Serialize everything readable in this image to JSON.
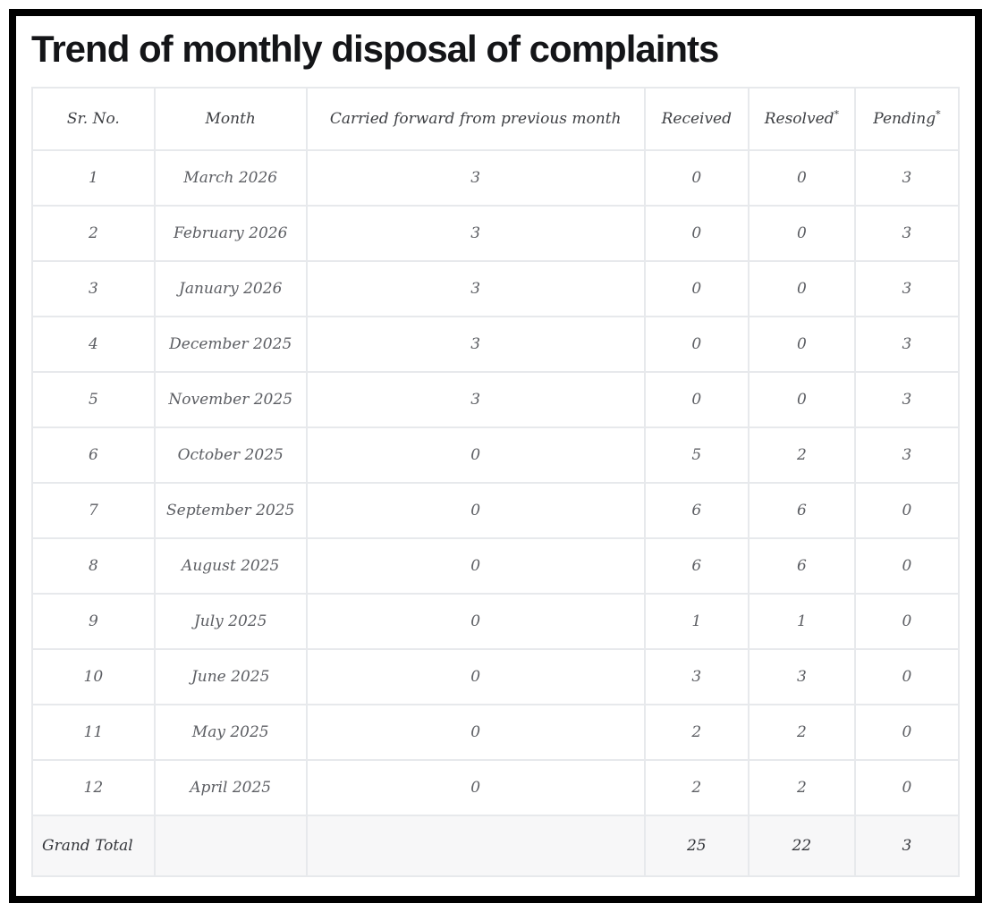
{
  "title": "Trend of monthly disposal of complaints",
  "colors": {
    "frame_border": "#000000",
    "rule_dark": "#26282c",
    "rule_light": "#e7e9ec",
    "grand_total_bg": "#f7f7f8",
    "title_text": "#141518",
    "body_text": "#5c5e63"
  },
  "table": {
    "columns": [
      {
        "label": "Sr. No.",
        "sup": ""
      },
      {
        "label": "Month",
        "sup": ""
      },
      {
        "label": "Carried forward from previous month",
        "sup": ""
      },
      {
        "label": "Received",
        "sup": ""
      },
      {
        "label": "Resolved",
        "sup": "*"
      },
      {
        "label": "Pending",
        "sup": "*"
      }
    ],
    "rows": [
      {
        "sr": "1",
        "month": "March 2026",
        "carried": "3",
        "received": "0",
        "resolved": "0",
        "pending": "3"
      },
      {
        "sr": "2",
        "month": "February 2026",
        "carried": "3",
        "received": "0",
        "resolved": "0",
        "pending": "3"
      },
      {
        "sr": "3",
        "month": "January 2026",
        "carried": "3",
        "received": "0",
        "resolved": "0",
        "pending": "3"
      },
      {
        "sr": "4",
        "month": "December 2025",
        "carried": "3",
        "received": "0",
        "resolved": "0",
        "pending": "3"
      },
      {
        "sr": "5",
        "month": "November 2025",
        "carried": "3",
        "received": "0",
        "resolved": "0",
        "pending": "3"
      },
      {
        "sr": "6",
        "month": "October 2025",
        "carried": "0",
        "received": "5",
        "resolved": "2",
        "pending": "3"
      },
      {
        "sr": "7",
        "month": "September 2025",
        "carried": "0",
        "received": "6",
        "resolved": "6",
        "pending": "0"
      },
      {
        "sr": "8",
        "month": "August 2025",
        "carried": "0",
        "received": "6",
        "resolved": "6",
        "pending": "0"
      },
      {
        "sr": "9",
        "month": "July 2025",
        "carried": "0",
        "received": "1",
        "resolved": "1",
        "pending": "0"
      },
      {
        "sr": "10",
        "month": "June 2025",
        "carried": "0",
        "received": "3",
        "resolved": "3",
        "pending": "0"
      },
      {
        "sr": "11",
        "month": "May 2025",
        "carried": "0",
        "received": "2",
        "resolved": "2",
        "pending": "0"
      },
      {
        "sr": "12",
        "month": "April 2025",
        "carried": "0",
        "received": "2",
        "resolved": "2",
        "pending": "0"
      }
    ],
    "grand_total": {
      "label": "Grand Total",
      "month": "",
      "carried": "",
      "received": "25",
      "resolved": "22",
      "pending": "3"
    }
  }
}
